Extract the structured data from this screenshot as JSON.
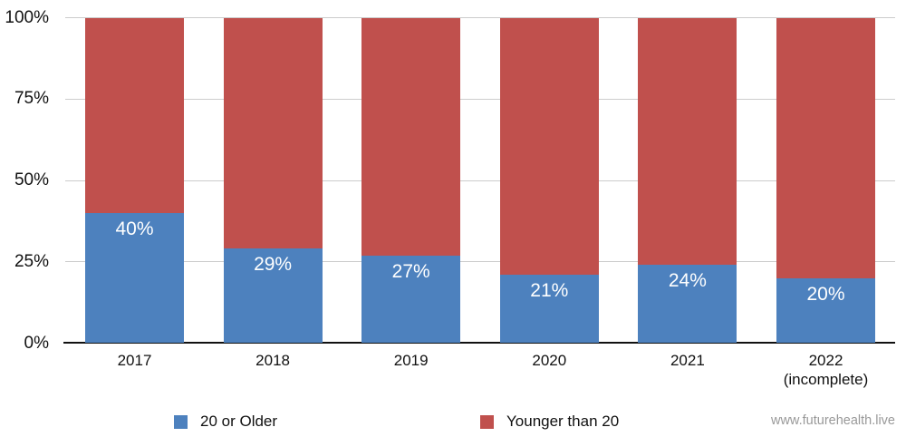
{
  "chart_data": {
    "type": "bar",
    "stacked": true,
    "orientation": "vertical",
    "categories": [
      "2017",
      "2018",
      "2019",
      "2020",
      "2021",
      "2022"
    ],
    "category_sublabels": [
      "",
      "",
      "",
      "",
      "",
      "(incomplete)"
    ],
    "series": [
      {
        "name": "20 or Older",
        "color": "#4D81BE",
        "values": [
          40,
          29,
          27,
          21,
          24,
          20
        ],
        "labels": [
          "40%",
          "29%",
          "27%",
          "21%",
          "24%",
          "20%"
        ],
        "label_color": "#ffffff"
      },
      {
        "name": "Younger than 20",
        "color": "#C0504D",
        "values": [
          60,
          71,
          73,
          79,
          76,
          80
        ],
        "labels": [
          "",
          "",
          "",
          "",
          "",
          ""
        ],
        "label_color": "#ffffff"
      }
    ],
    "ylim": [
      0,
      100
    ],
    "y_ticks": [
      {
        "value": 100,
        "label": "100%"
      },
      {
        "value": 75,
        "label": "75%"
      },
      {
        "value": 50,
        "label": "50%"
      },
      {
        "value": 25,
        "label": "25%"
      },
      {
        "value": 0,
        "label": "0%"
      }
    ],
    "grid": true,
    "legend_position": "bottom"
  },
  "legend": {
    "items": [
      {
        "label": "20 or Older",
        "color": "#4D81BE"
      },
      {
        "label": "Younger than 20",
        "color": "#C0504D"
      }
    ]
  },
  "watermark": "www.futurehealth.live",
  "colors": {
    "blue": "#4D81BE",
    "red": "#C0504D",
    "grid": "#cccccc",
    "axis": "#111111",
    "watermark": "#999999"
  }
}
